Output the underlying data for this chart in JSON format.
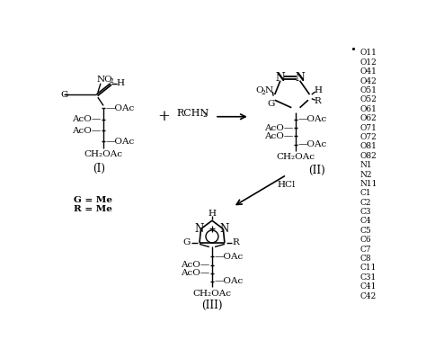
{
  "bg_color": "#ffffff",
  "fig_width": 4.74,
  "fig_height": 3.88,
  "dpi": 100,
  "right_column_labels": [
    "O11",
    "O12",
    "O41",
    "O42",
    "O51",
    "O52",
    "O61",
    "O62",
    "O71",
    "O72",
    "O81",
    "O82",
    "N1",
    "N2",
    "N11",
    "C1",
    "C2",
    "C3",
    "C4",
    "C5",
    "C6",
    "C7",
    "C8",
    "C11",
    "C31",
    "C41",
    "C42"
  ]
}
